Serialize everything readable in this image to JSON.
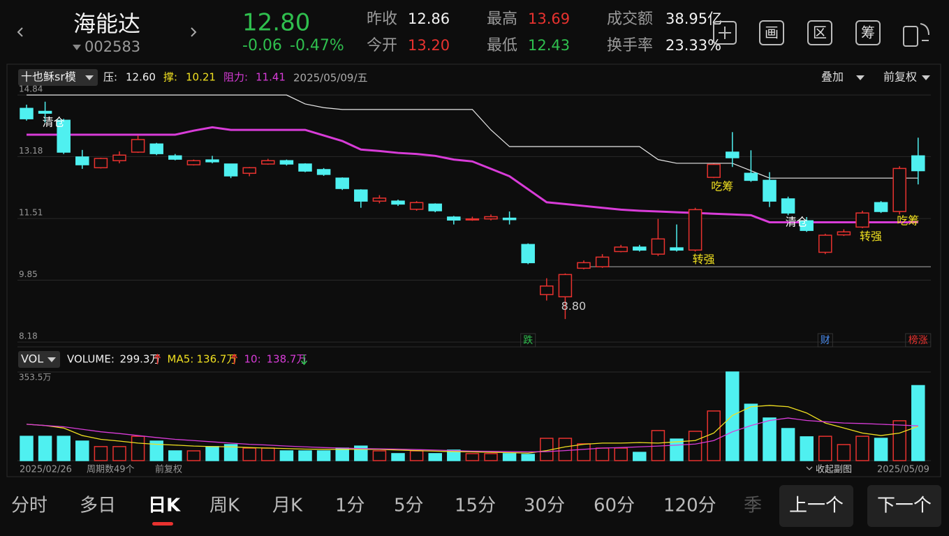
{
  "header": {
    "name": "海能达",
    "code": "002583",
    "price": "12.80",
    "change": "-0.06",
    "change_pct": "-0.47%",
    "stats": [
      {
        "label": "昨收",
        "value": "12.86",
        "color": "#f2f2f2"
      },
      {
        "label": "今开",
        "value": "13.20",
        "color": "#e8322f"
      },
      {
        "label": "最高",
        "value": "13.69",
        "color": "#e8322f"
      },
      {
        "label": "最低",
        "value": "12.43",
        "color": "#2fbf4e"
      },
      {
        "label": "成交额",
        "value": "38.95亿",
        "color": "#f2f2f2"
      },
      {
        "label": "换手率",
        "value": "23.33%",
        "color": "#f2f2f2"
      }
    ],
    "tools": [
      "画",
      "区",
      "筹"
    ]
  },
  "kline": {
    "type": "candlestick",
    "indicator": "十也稣sr模",
    "date": "2025/05/09/五",
    "overlay": "叠加",
    "adjust": "前复权",
    "levels": [
      {
        "label": "压:",
        "value": 12.6,
        "value_label": "12.60",
        "color": "#f2f2f2"
      },
      {
        "label": "撑:",
        "value": 10.21,
        "value_label": "10.21",
        "color": "#f0e020"
      },
      {
        "label": "阻力:",
        "value": 11.41,
        "value_label": "11.41",
        "color": "#d83cd8"
      }
    ],
    "ylim": [
      8.05,
      15.05
    ],
    "yticks": [
      14.84,
      13.18,
      11.51,
      9.85,
      8.18
    ],
    "grid": true,
    "up_color": "#e8322f",
    "down_color": "#4ff0f0",
    "open": [
      14.48,
      14.4,
      14.16,
      13.17,
      12.88,
      13.07,
      13.3,
      13.52,
      13.2,
      12.96,
      13.09,
      12.98,
      12.73,
      12.98,
      13.07,
      12.98,
      12.83,
      12.6,
      12.28,
      11.98,
      11.98,
      11.76,
      11.9,
      11.55,
      11.5,
      11.5,
      11.52,
      10.81,
      9.46,
      9.4,
      10.17,
      10.21,
      10.62,
      10.74,
      10.55,
      10.72,
      10.66,
      12.62,
      13.3,
      12.73,
      12.54,
      12.04,
      11.45,
      10.6,
      11.07,
      11.28,
      11.94,
      11.7,
      13.2
    ],
    "high": [
      14.58,
      14.66,
      14.2,
      13.36,
      13.15,
      13.32,
      13.75,
      13.55,
      13.25,
      13.1,
      13.2,
      12.98,
      12.9,
      13.12,
      13.1,
      13.0,
      12.87,
      12.62,
      12.3,
      12.14,
      12.02,
      11.98,
      11.92,
      11.58,
      11.56,
      11.62,
      11.7,
      10.84,
      9.9,
      10.03,
      10.38,
      10.55,
      10.8,
      10.8,
      11.5,
      11.35,
      11.8,
      12.99,
      13.84,
      13.35,
      12.76,
      12.1,
      11.55,
      11.1,
      11.22,
      11.72,
      11.98,
      12.92,
      13.69
    ],
    "low": [
      14.15,
      14.1,
      13.25,
      12.85,
      12.86,
      13.0,
      13.28,
      13.22,
      13.08,
      12.94,
      13.0,
      12.6,
      12.65,
      12.96,
      12.94,
      12.76,
      12.66,
      12.28,
      11.8,
      11.92,
      11.85,
      11.72,
      11.68,
      11.35,
      11.45,
      11.46,
      11.35,
      10.28,
      9.3,
      8.8,
      10.14,
      10.18,
      10.6,
      10.62,
      10.5,
      10.62,
      10.62,
      12.6,
      12.9,
      12.5,
      11.82,
      11.6,
      11.15,
      10.55,
      11.04,
      11.25,
      11.66,
      11.62,
      12.43
    ],
    "close": [
      14.2,
      14.35,
      13.3,
      12.96,
      13.13,
      13.22,
      13.64,
      13.26,
      13.11,
      13.07,
      13.04,
      12.66,
      12.88,
      13.07,
      12.98,
      12.79,
      12.7,
      12.32,
      11.98,
      12.06,
      11.9,
      11.94,
      11.72,
      11.47,
      11.5,
      11.56,
      11.48,
      10.32,
      9.69,
      10.0,
      10.32,
      10.47,
      10.74,
      10.66,
      10.96,
      10.66,
      11.75,
      12.97,
      13.15,
      12.54,
      11.98,
      11.66,
      11.19,
      11.06,
      11.15,
      11.66,
      11.7,
      12.86,
      12.8
    ],
    "lines": [
      {
        "color": "#e8e8e8",
        "values": [
          14.84,
          14.84,
          14.84,
          14.84,
          14.84,
          14.84,
          14.84,
          14.84,
          14.84,
          14.84,
          14.84,
          14.84,
          14.84,
          14.84,
          14.84,
          14.6,
          14.5,
          14.45,
          14.45,
          14.45,
          14.45,
          14.45,
          14.45,
          14.45,
          14.45,
          13.9,
          13.45,
          13.45,
          13.45,
          13.45,
          13.45,
          13.45,
          13.45,
          13.45,
          13.1,
          13.0,
          13.0,
          13.0,
          13.0,
          12.8,
          12.6,
          12.6,
          12.6,
          12.6,
          12.6,
          12.6,
          12.6,
          12.6,
          12.6
        ]
      },
      {
        "color": "#d83cd8",
        "values": [
          13.77,
          13.77,
          13.77,
          13.77,
          13.77,
          13.77,
          13.77,
          13.77,
          13.77,
          13.88,
          13.97,
          13.9,
          13.9,
          13.9,
          13.9,
          13.9,
          13.75,
          13.6,
          13.37,
          13.33,
          13.28,
          13.25,
          13.2,
          13.1,
          13.05,
          12.85,
          12.65,
          12.3,
          11.95,
          11.9,
          11.85,
          11.8,
          11.75,
          11.72,
          11.7,
          11.68,
          11.66,
          11.64,
          11.62,
          11.6,
          11.41,
          11.41,
          11.41,
          11.41,
          11.41,
          11.41,
          11.41,
          11.41,
          11.41
        ]
      }
    ],
    "annotations": [
      {
        "index": 1,
        "text": "清仓",
        "color": "#ffffff"
      },
      {
        "index": 29,
        "text": "8.80",
        "color": "#cccccc"
      },
      {
        "index": 36,
        "text": "转强",
        "color": "#f0e020"
      },
      {
        "index": 37,
        "text": "吃筹",
        "color": "#f0e020"
      },
      {
        "index": 41,
        "text": "清仓",
        "color": "#ffffff"
      },
      {
        "index": 45,
        "text": "转强",
        "color": "#f0e020"
      },
      {
        "index": 47,
        "text": "吃筹",
        "color": "#f0e020"
      }
    ],
    "events": [
      {
        "index": 27,
        "text": "跌",
        "color": "#2fbf4e"
      },
      {
        "index": 43,
        "text": "财",
        "color": "#4a8cf0"
      },
      {
        "index": 48,
        "text": "榜涨",
        "color": "#e8322f"
      }
    ]
  },
  "volume": {
    "type": "bar",
    "name": "VOL",
    "ylim": [
      0,
      353.5
    ],
    "yticks": [
      {
        "value": 353.5,
        "label": "353.5万"
      }
    ],
    "legend": [
      {
        "name": "VOLUME:",
        "label": "299.3万",
        "color": "#f2f2f2"
      },
      {
        "name": "MA5:",
        "label": "136.7万",
        "color": "#f0e020"
      },
      {
        "name": "10:",
        "label": "138.7万",
        "color": "#d83cd8"
      }
    ],
    "values": [
      97,
      97,
      97,
      78,
      56,
      56,
      97,
      78,
      39,
      39,
      56,
      64,
      50,
      50,
      39,
      39,
      39,
      50,
      58,
      39,
      28,
      39,
      28,
      42,
      28,
      28,
      28,
      25,
      89,
      89,
      67,
      50,
      50,
      33,
      120,
      86,
      117,
      198,
      353.5,
      225,
      170,
      128,
      95,
      97,
      64,
      97,
      89,
      159,
      299.3
    ],
    "ma5": [
      145,
      140,
      130,
      100,
      85,
      78,
      70,
      65,
      62,
      58,
      56,
      55,
      52,
      50,
      48,
      46,
      45,
      45,
      45,
      45,
      42,
      40,
      38,
      36,
      35,
      33,
      32,
      30,
      40,
      55,
      65,
      70,
      70,
      72,
      70,
      75,
      80,
      110,
      180,
      215,
      220,
      215,
      190,
      150,
      130,
      110,
      100,
      110,
      136.7
    ],
    "ma10": [
      145,
      140,
      135,
      125,
      115,
      108,
      100,
      92,
      85,
      80,
      75,
      70,
      65,
      62,
      58,
      55,
      52,
      50,
      48,
      47,
      46,
      44,
      42,
      40,
      38,
      37,
      36,
      35,
      36,
      40,
      45,
      50,
      52,
      55,
      58,
      62,
      66,
      80,
      115,
      140,
      160,
      170,
      160,
      155,
      150,
      148,
      145,
      142,
      138.7
    ]
  },
  "footer": {
    "start_date": "2025/02/26",
    "period_count": "周期数49个",
    "adjust": "前复权",
    "collapse": "收起副图",
    "end_date": "2025/05/09"
  },
  "tabs": {
    "items": [
      "分时",
      "多日",
      "日K",
      "周K",
      "月K",
      "1分",
      "5分",
      "15分",
      "30分",
      "60分",
      "120分",
      "季"
    ],
    "active": 2
  },
  "buttons": [
    "上一个",
    "下一个"
  ]
}
